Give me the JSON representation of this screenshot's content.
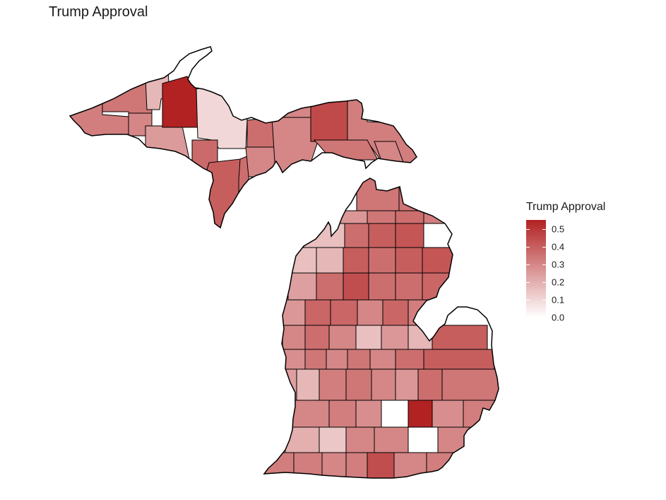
{
  "title": "Trump Approval",
  "colors": {
    "low": "#ffffff",
    "high": "#b22222",
    "stroke": "#000000"
  },
  "scale": {
    "min": 0.0,
    "max": 0.55
  },
  "legend": {
    "title": "Trump Approval",
    "ticks": [
      "0.0",
      "0.1",
      "0.2",
      "0.3",
      "0.4",
      "0.5"
    ]
  },
  "upper_peninsula": [
    {
      "id": "up-1",
      "value": 0.32
    },
    {
      "id": "up-2",
      "value": 0.34
    },
    {
      "id": "up-3",
      "value": 0.3
    },
    {
      "id": "up-4",
      "value": 0.25
    },
    {
      "id": "up-5",
      "value": 0.18
    },
    {
      "id": "up-6",
      "value": 0.55
    },
    {
      "id": "up-7",
      "value": 0.1
    },
    {
      "id": "up-8",
      "value": 0.37
    },
    {
      "id": "up-9",
      "value": 0.4
    },
    {
      "id": "up-10",
      "value": 0.36
    },
    {
      "id": "up-11",
      "value": 0.3
    },
    {
      "id": "up-12",
      "value": 0.36
    },
    {
      "id": "up-13",
      "value": 0.3
    },
    {
      "id": "up-14",
      "value": 0.3
    },
    {
      "id": "up-15",
      "value": 0.45
    },
    {
      "id": "up-16",
      "value": 0.32
    },
    {
      "id": "up-17",
      "value": 0.34
    },
    {
      "id": "up-18",
      "value": 0.3
    }
  ],
  "lower_peninsula": [
    [
      0.34,
      0.34
    ],
    [
      0.26,
      0.34,
      0.36,
      0.32
    ],
    [
      0.16,
      0.36,
      0.4,
      0.42
    ],
    [
      0.16,
      0.18,
      0.4,
      0.36,
      0.4,
      0.42
    ],
    [
      0.24,
      0.36,
      0.44,
      0.36,
      0.36,
      0.38
    ],
    [
      0.26,
      0.38,
      0.38,
      0.3,
      0.38,
      0.32
    ],
    [
      0.3,
      0.36,
      0.3,
      0.16,
      0.26,
      0.18,
      0.4
    ],
    [
      0.28,
      0.34,
      0.3,
      0.34,
      0.3,
      0.36,
      0.4
    ],
    [
      0.24,
      0.18,
      0.32,
      0.34,
      0.3,
      0.26,
      0.36,
      0.34
    ],
    [
      0.3,
      0.2,
      0.34,
      0.28,
      0.24,
      0.26,
      0.3,
      0.34
    ],
    [
      0.3,
      0.32,
      0.28,
      0.0,
      0.55,
      0.28,
      0.32
    ],
    [
      0.2,
      0.14,
      0.3,
      0.3,
      0.0,
      0.3
    ],
    [
      0.32,
      0.32,
      0.3,
      0.32,
      0.44,
      0.3,
      0.32
    ]
  ]
}
